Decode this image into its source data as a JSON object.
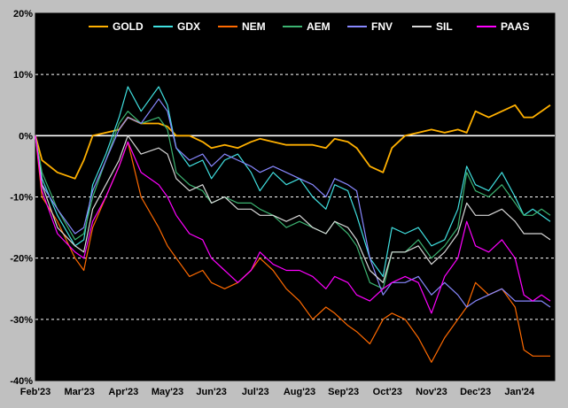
{
  "chart_data": {
    "type": "line",
    "title": "",
    "xlabel": "",
    "ylabel": "",
    "x_tick_labels": [
      "Feb'23",
      "Mar'23",
      "Apr'23",
      "May'23",
      "Jun'23",
      "Jul'23",
      "Aug'23",
      "Sep'23",
      "Oct'23",
      "Nov'23",
      "Dec'23",
      "Jan'24"
    ],
    "y_tick_labels": [
      "20%",
      "10%",
      "0%",
      "-10%",
      "-20%",
      "-30%",
      "-40%"
    ],
    "y_ticks": [
      20,
      10,
      0,
      -10,
      -20,
      -30,
      -40
    ],
    "ylim": [
      -40,
      20
    ],
    "xlim": [
      0,
      11.8
    ],
    "grid": "horizontal-dashed",
    "legend_position": "top-center",
    "series": [
      {
        "name": "GOLD",
        "color": "#ffb000",
        "points": [
          [
            0,
            0
          ],
          [
            0.15,
            -4
          ],
          [
            0.5,
            -6
          ],
          [
            0.9,
            -7
          ],
          [
            1.1,
            -4
          ],
          [
            1.3,
            0
          ],
          [
            1.6,
            0.5
          ],
          [
            1.9,
            1
          ],
          [
            2.1,
            3
          ],
          [
            2.4,
            2
          ],
          [
            2.8,
            2
          ],
          [
            3.0,
            1.5
          ],
          [
            3.2,
            0
          ],
          [
            3.5,
            0
          ],
          [
            3.8,
            -1
          ],
          [
            4.0,
            -2
          ],
          [
            4.3,
            -1.5
          ],
          [
            4.6,
            -2
          ],
          [
            4.9,
            -1
          ],
          [
            5.1,
            -0.5
          ],
          [
            5.4,
            -1
          ],
          [
            5.7,
            -1.5
          ],
          [
            6.0,
            -1.5
          ],
          [
            6.3,
            -1.5
          ],
          [
            6.6,
            -2
          ],
          [
            6.8,
            -0.5
          ],
          [
            7.1,
            -1
          ],
          [
            7.3,
            -2
          ],
          [
            7.6,
            -5
          ],
          [
            7.9,
            -6
          ],
          [
            8.1,
            -2
          ],
          [
            8.4,
            0
          ],
          [
            8.7,
            0.5
          ],
          [
            9.0,
            1
          ],
          [
            9.3,
            0.5
          ],
          [
            9.6,
            1
          ],
          [
            9.8,
            0.5
          ],
          [
            10.0,
            4
          ],
          [
            10.3,
            3
          ],
          [
            10.6,
            4
          ],
          [
            10.9,
            5
          ],
          [
            11.1,
            3
          ],
          [
            11.3,
            3
          ],
          [
            11.5,
            4
          ],
          [
            11.7,
            5
          ]
        ]
      },
      {
        "name": "GDX",
        "color": "#40e0e0",
        "points": [
          [
            0,
            0
          ],
          [
            0.15,
            -7
          ],
          [
            0.5,
            -13
          ],
          [
            0.9,
            -18
          ],
          [
            1.1,
            -17
          ],
          [
            1.3,
            -8
          ],
          [
            1.6,
            -3
          ],
          [
            1.9,
            3
          ],
          [
            2.1,
            8
          ],
          [
            2.4,
            4
          ],
          [
            2.8,
            8
          ],
          [
            3.0,
            5
          ],
          [
            3.2,
            -2
          ],
          [
            3.5,
            -5
          ],
          [
            3.8,
            -4
          ],
          [
            4.0,
            -7
          ],
          [
            4.3,
            -4
          ],
          [
            4.6,
            -3
          ],
          [
            4.9,
            -6
          ],
          [
            5.1,
            -9
          ],
          [
            5.4,
            -6
          ],
          [
            5.7,
            -8
          ],
          [
            6.0,
            -7
          ],
          [
            6.3,
            -10
          ],
          [
            6.6,
            -12
          ],
          [
            6.8,
            -8
          ],
          [
            7.1,
            -9
          ],
          [
            7.3,
            -13
          ],
          [
            7.6,
            -20
          ],
          [
            7.9,
            -23
          ],
          [
            8.1,
            -15
          ],
          [
            8.4,
            -16
          ],
          [
            8.7,
            -15
          ],
          [
            9.0,
            -18
          ],
          [
            9.3,
            -17
          ],
          [
            9.6,
            -12
          ],
          [
            9.8,
            -5
          ],
          [
            10.0,
            -8
          ],
          [
            10.3,
            -9
          ],
          [
            10.6,
            -6
          ],
          [
            10.9,
            -10
          ],
          [
            11.1,
            -13
          ],
          [
            11.3,
            -12
          ],
          [
            11.5,
            -13
          ],
          [
            11.7,
            -14
          ]
        ]
      },
      {
        "name": "NEM",
        "color": "#ff6a00",
        "points": [
          [
            0,
            0
          ],
          [
            0.15,
            -10
          ],
          [
            0.5,
            -14
          ],
          [
            0.9,
            -20
          ],
          [
            1.1,
            -22
          ],
          [
            1.3,
            -15
          ],
          [
            1.6,
            -10
          ],
          [
            1.9,
            -5
          ],
          [
            2.1,
            -1
          ],
          [
            2.4,
            -10
          ],
          [
            2.8,
            -15
          ],
          [
            3.0,
            -18
          ],
          [
            3.2,
            -20
          ],
          [
            3.5,
            -23
          ],
          [
            3.8,
            -22
          ],
          [
            4.0,
            -24
          ],
          [
            4.3,
            -25
          ],
          [
            4.6,
            -24
          ],
          [
            4.9,
            -22
          ],
          [
            5.1,
            -20
          ],
          [
            5.4,
            -22
          ],
          [
            5.7,
            -25
          ],
          [
            6.0,
            -27
          ],
          [
            6.3,
            -30
          ],
          [
            6.6,
            -28
          ],
          [
            6.8,
            -29
          ],
          [
            7.1,
            -31
          ],
          [
            7.3,
            -32
          ],
          [
            7.6,
            -34
          ],
          [
            7.9,
            -30
          ],
          [
            8.1,
            -29
          ],
          [
            8.4,
            -30
          ],
          [
            8.7,
            -33
          ],
          [
            9.0,
            -37
          ],
          [
            9.3,
            -33
          ],
          [
            9.6,
            -30
          ],
          [
            9.8,
            -28
          ],
          [
            10.0,
            -24
          ],
          [
            10.3,
            -26
          ],
          [
            10.6,
            -25
          ],
          [
            10.9,
            -28
          ],
          [
            11.1,
            -35
          ],
          [
            11.3,
            -36
          ],
          [
            11.5,
            -36
          ],
          [
            11.7,
            -36
          ]
        ]
      },
      {
        "name": "AEM",
        "color": "#3cb371",
        "points": [
          [
            0,
            0
          ],
          [
            0.15,
            -6
          ],
          [
            0.5,
            -12
          ],
          [
            0.9,
            -17
          ],
          [
            1.1,
            -16
          ],
          [
            1.3,
            -10
          ],
          [
            1.6,
            -4
          ],
          [
            1.9,
            2
          ],
          [
            2.1,
            4
          ],
          [
            2.4,
            2
          ],
          [
            2.8,
            3
          ],
          [
            3.0,
            1
          ],
          [
            3.2,
            -6
          ],
          [
            3.5,
            -8
          ],
          [
            3.8,
            -9
          ],
          [
            4.0,
            -11
          ],
          [
            4.3,
            -10
          ],
          [
            4.6,
            -11
          ],
          [
            4.9,
            -11
          ],
          [
            5.1,
            -12
          ],
          [
            5.4,
            -13
          ],
          [
            5.7,
            -15
          ],
          [
            6.0,
            -14
          ],
          [
            6.3,
            -15
          ],
          [
            6.6,
            -16
          ],
          [
            6.8,
            -14
          ],
          [
            7.1,
            -16
          ],
          [
            7.3,
            -18
          ],
          [
            7.6,
            -24
          ],
          [
            7.9,
            -25
          ],
          [
            8.1,
            -19
          ],
          [
            8.4,
            -19
          ],
          [
            8.7,
            -17
          ],
          [
            9.0,
            -20
          ],
          [
            9.3,
            -18
          ],
          [
            9.6,
            -15
          ],
          [
            9.8,
            -6
          ],
          [
            10.0,
            -9
          ],
          [
            10.3,
            -10
          ],
          [
            10.6,
            -8
          ],
          [
            10.9,
            -11
          ],
          [
            11.1,
            -13
          ],
          [
            11.3,
            -13
          ],
          [
            11.5,
            -12
          ],
          [
            11.7,
            -13
          ]
        ]
      },
      {
        "name": "FNV",
        "color": "#8888ff",
        "points": [
          [
            0,
            0
          ],
          [
            0.15,
            -8
          ],
          [
            0.5,
            -12
          ],
          [
            0.9,
            -16
          ],
          [
            1.1,
            -15
          ],
          [
            1.3,
            -9
          ],
          [
            1.6,
            -4
          ],
          [
            1.9,
            1
          ],
          [
            2.1,
            3
          ],
          [
            2.4,
            2
          ],
          [
            2.8,
            6
          ],
          [
            3.0,
            4
          ],
          [
            3.2,
            -2
          ],
          [
            3.5,
            -4
          ],
          [
            3.8,
            -3
          ],
          [
            4.0,
            -5
          ],
          [
            4.3,
            -3
          ],
          [
            4.6,
            -4
          ],
          [
            4.9,
            -5
          ],
          [
            5.1,
            -6
          ],
          [
            5.4,
            -5
          ],
          [
            5.7,
            -6
          ],
          [
            6.0,
            -7
          ],
          [
            6.3,
            -8
          ],
          [
            6.6,
            -10
          ],
          [
            6.8,
            -7
          ],
          [
            7.1,
            -8
          ],
          [
            7.3,
            -9
          ],
          [
            7.6,
            -20
          ],
          [
            7.9,
            -26
          ],
          [
            8.1,
            -24
          ],
          [
            8.4,
            -24
          ],
          [
            8.7,
            -23
          ],
          [
            9.0,
            -26
          ],
          [
            9.3,
            -24
          ],
          [
            9.6,
            -26
          ],
          [
            9.8,
            -28
          ],
          [
            10.0,
            -27
          ],
          [
            10.3,
            -26
          ],
          [
            10.6,
            -25
          ],
          [
            10.9,
            -27
          ],
          [
            11.1,
            -27
          ],
          [
            11.3,
            -27
          ],
          [
            11.5,
            -27
          ],
          [
            11.7,
            -28
          ]
        ]
      },
      {
        "name": "SIL",
        "color": "#d8d8d8",
        "points": [
          [
            0,
            0
          ],
          [
            0.15,
            -8
          ],
          [
            0.5,
            -15
          ],
          [
            0.9,
            -18
          ],
          [
            1.1,
            -19
          ],
          [
            1.3,
            -12
          ],
          [
            1.6,
            -8
          ],
          [
            1.9,
            -4
          ],
          [
            2.1,
            0
          ],
          [
            2.4,
            -3
          ],
          [
            2.8,
            -2
          ],
          [
            3.0,
            -3
          ],
          [
            3.2,
            -7
          ],
          [
            3.5,
            -9
          ],
          [
            3.8,
            -8
          ],
          [
            4.0,
            -11
          ],
          [
            4.3,
            -10
          ],
          [
            4.6,
            -12
          ],
          [
            4.9,
            -12
          ],
          [
            5.1,
            -13
          ],
          [
            5.4,
            -13
          ],
          [
            5.7,
            -14
          ],
          [
            6.0,
            -13
          ],
          [
            6.3,
            -15
          ],
          [
            6.6,
            -16
          ],
          [
            6.8,
            -14
          ],
          [
            7.1,
            -15
          ],
          [
            7.3,
            -17
          ],
          [
            7.6,
            -22
          ],
          [
            7.9,
            -24
          ],
          [
            8.1,
            -19
          ],
          [
            8.4,
            -19
          ],
          [
            8.7,
            -18
          ],
          [
            9.0,
            -21
          ],
          [
            9.3,
            -19
          ],
          [
            9.6,
            -16
          ],
          [
            9.8,
            -11
          ],
          [
            10.0,
            -13
          ],
          [
            10.3,
            -13
          ],
          [
            10.6,
            -12
          ],
          [
            10.9,
            -14
          ],
          [
            11.1,
            -16
          ],
          [
            11.3,
            -16
          ],
          [
            11.5,
            -16
          ],
          [
            11.7,
            -17
          ]
        ]
      },
      {
        "name": "PAAS",
        "color": "#ff00ff",
        "points": [
          [
            0,
            0
          ],
          [
            0.15,
            -9
          ],
          [
            0.5,
            -16
          ],
          [
            0.9,
            -19
          ],
          [
            1.1,
            -20
          ],
          [
            1.3,
            -14
          ],
          [
            1.6,
            -10
          ],
          [
            1.9,
            -5
          ],
          [
            2.1,
            -1
          ],
          [
            2.4,
            -6
          ],
          [
            2.8,
            -8
          ],
          [
            3.0,
            -10
          ],
          [
            3.2,
            -13
          ],
          [
            3.5,
            -16
          ],
          [
            3.8,
            -17
          ],
          [
            4.0,
            -20
          ],
          [
            4.3,
            -22
          ],
          [
            4.6,
            -24
          ],
          [
            4.9,
            -22
          ],
          [
            5.1,
            -19
          ],
          [
            5.4,
            -21
          ],
          [
            5.7,
            -22
          ],
          [
            6.0,
            -22
          ],
          [
            6.3,
            -23
          ],
          [
            6.6,
            -25
          ],
          [
            6.8,
            -23
          ],
          [
            7.1,
            -24
          ],
          [
            7.3,
            -26
          ],
          [
            7.6,
            -27
          ],
          [
            7.9,
            -25
          ],
          [
            8.1,
            -24
          ],
          [
            8.4,
            -23
          ],
          [
            8.7,
            -24
          ],
          [
            9.0,
            -29
          ],
          [
            9.3,
            -23
          ],
          [
            9.6,
            -20
          ],
          [
            9.8,
            -14
          ],
          [
            10.0,
            -18
          ],
          [
            10.3,
            -19
          ],
          [
            10.6,
            -17
          ],
          [
            10.9,
            -20
          ],
          [
            11.1,
            -26
          ],
          [
            11.3,
            -27
          ],
          [
            11.5,
            -26
          ],
          [
            11.7,
            -27
          ]
        ]
      }
    ]
  }
}
